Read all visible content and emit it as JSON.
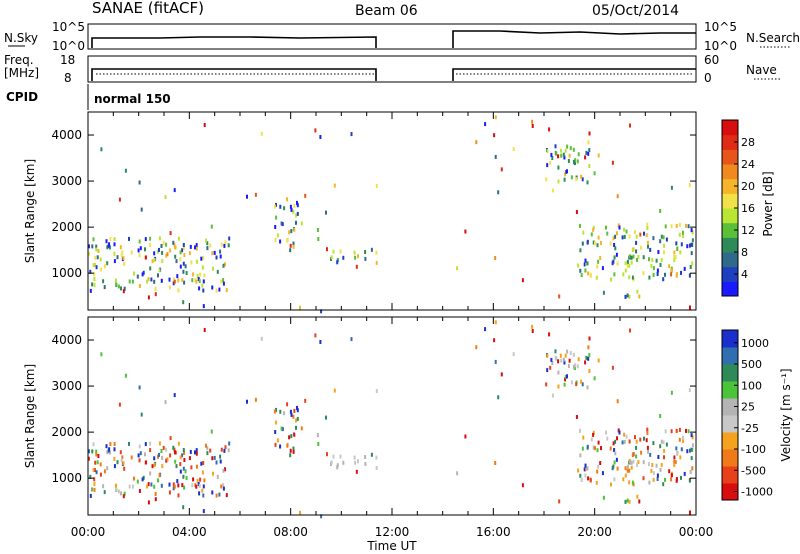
{
  "header": {
    "station": "SANAE (fitACF)",
    "beam": "Beam 06",
    "date": "05/Oct/2014"
  },
  "noise_panel": {
    "left_label": "N.Sky",
    "left_ticks": [
      "10^5",
      "10^0"
    ],
    "right_ticks": [
      "10^5",
      "10^0"
    ],
    "right_label": "N.Search"
  },
  "freq_panel": {
    "left_label_1": "Freq.",
    "left_label_2": "[MHz]",
    "left_ticks": [
      "18",
      "8"
    ],
    "right_ticks": [
      "60",
      "0"
    ],
    "right_label": "Nave"
  },
  "cpid": {
    "label": "CPID",
    "value": "normal 150"
  },
  "chart_data": [
    {
      "type": "heatmap",
      "name": "power",
      "ylabel": "Slant Range [km]",
      "xlabel": "",
      "xlim": [
        0,
        24
      ],
      "ylim": [
        200,
        4500
      ],
      "y_ticks": [
        "1000",
        "2000",
        "3000",
        "4000"
      ],
      "colorbar": {
        "label": "Power [dB]",
        "ticks": [
          "4",
          "8",
          "12",
          "16",
          "20",
          "24",
          "28"
        ],
        "colors": [
          "#1a1aff",
          "#1e3fbf",
          "#2f6a8a",
          "#2e8b57",
          "#5cbf3a",
          "#b8e632",
          "#f2e24a",
          "#f5b52a",
          "#f08a1f",
          "#e8551a",
          "#e02b16",
          "#d80d0d"
        ]
      },
      "clusters": [
        {
          "t0": 0.0,
          "t1": 5.6,
          "r0": 650,
          "r1": 1800
        },
        {
          "t0": 7.3,
          "t1": 8.4,
          "r0": 1600,
          "r1": 2650
        },
        {
          "t0": 9.5,
          "t1": 11.4,
          "r0": 1250,
          "r1": 1550
        },
        {
          "t0": 19.3,
          "t1": 24.0,
          "r0": 900,
          "r1": 2100
        },
        {
          "t0": 21.0,
          "t1": 22.0,
          "r0": 450,
          "r1": 650
        },
        {
          "t0": 18.0,
          "t1": 19.8,
          "r0": 3000,
          "r1": 3900
        }
      ],
      "gap": [
        11.4,
        14.5
      ]
    },
    {
      "type": "heatmap",
      "name": "velocity",
      "ylabel": "Slant Range [km]",
      "xlabel": "Time UT",
      "xlim": [
        0,
        24
      ],
      "ylim": [
        200,
        4500
      ],
      "x_ticks": [
        "00:00",
        "04:00",
        "08:00",
        "12:00",
        "16:00",
        "20:00",
        "00:00"
      ],
      "y_ticks": [
        "1000",
        "2000",
        "3000",
        "4000"
      ],
      "colorbar": {
        "label": "Velocity [m s⁻¹]",
        "ticks": [
          "1000",
          "500",
          "100",
          "25",
          "-25",
          "-100",
          "-500",
          "-1000"
        ],
        "colors": [
          "#1a2fcc",
          "#2f6fb0",
          "#2f8a5a",
          "#4cc43a",
          "#b4b4b4",
          "#c8c8c8",
          "#f5a21f",
          "#f07a1a",
          "#e8401a",
          "#d80d0d"
        ]
      },
      "clusters": [
        {
          "t0": 0.0,
          "t1": 5.6,
          "r0": 650,
          "r1": 1800
        },
        {
          "t0": 7.3,
          "t1": 8.4,
          "r0": 1600,
          "r1": 2650
        },
        {
          "t0": 9.5,
          "t1": 11.4,
          "r0": 1250,
          "r1": 1550
        },
        {
          "t0": 19.3,
          "t1": 24.0,
          "r0": 900,
          "r1": 2100
        },
        {
          "t0": 21.0,
          "t1": 22.0,
          "r0": 450,
          "r1": 650
        },
        {
          "t0": 18.0,
          "t1": 19.8,
          "r0": 3000,
          "r1": 3900
        }
      ],
      "gap": [
        11.4,
        14.5
      ]
    }
  ]
}
